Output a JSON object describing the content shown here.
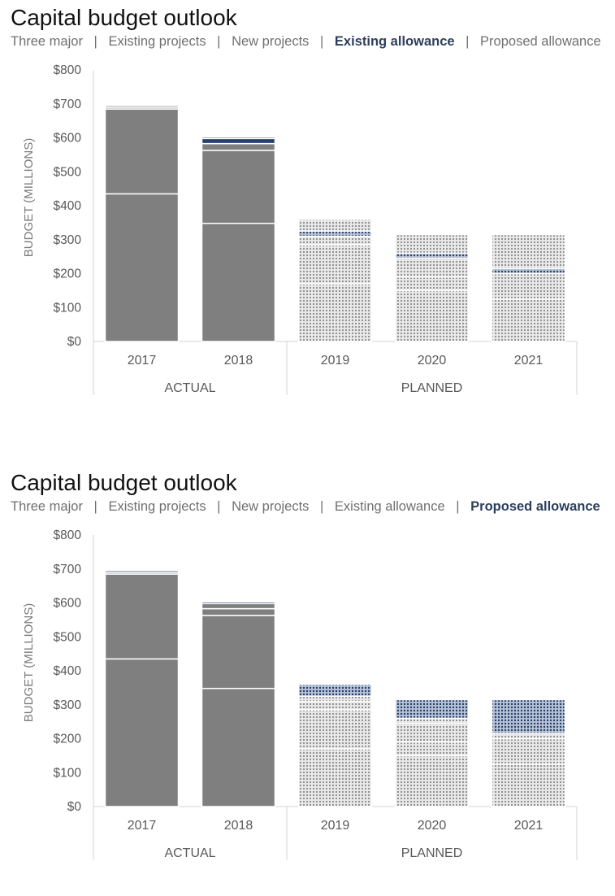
{
  "panels": [
    {
      "title": "Capital budget outlook",
      "legend": [
        {
          "label": "Three major",
          "highlight": false
        },
        {
          "label": "Existing projects",
          "highlight": false
        },
        {
          "label": "New projects",
          "highlight": false
        },
        {
          "label": "Existing allowance",
          "highlight": true
        },
        {
          "label": "Proposed allowance",
          "highlight": false
        }
      ],
      "separator": "|",
      "chart_data": {
        "type": "bar",
        "stacked": true,
        "title": "Capital budget outlook",
        "ylabel": "BUDGET (MILLIONS)",
        "xlabel": "",
        "ylim": [
          0,
          800
        ],
        "yticks": [
          0,
          100,
          200,
          300,
          400,
          500,
          600,
          700,
          800
        ],
        "ytick_labels": [
          "$0",
          "$100",
          "$200",
          "$300",
          "$400",
          "$500",
          "$600",
          "$700",
          "$800"
        ],
        "categories": [
          "2017",
          "2018",
          "2019",
          "2020",
          "2021"
        ],
        "groups": [
          {
            "label": "ACTUAL",
            "categories": [
              "2017",
              "2018"
            ]
          },
          {
            "label": "PLANNED",
            "categories": [
              "2019",
              "2020",
              "2021"
            ]
          }
        ],
        "highlight_series": "Existing allowance",
        "series": [
          {
            "name": "Three major",
            "values": [
              435,
              348,
              170,
              150,
              125
            ]
          },
          {
            "name": "Existing projects",
            "values": [
              250,
              215,
              115,
              40,
              75
            ]
          },
          {
            "name": "New projects",
            "values": [
              5,
              20,
              25,
              55,
              0
            ]
          },
          {
            "name": "Existing allowance",
            "values": [
              0,
              15,
              15,
              15,
              15
            ]
          },
          {
            "name": "Proposed allowance",
            "values": [
              5,
              5,
              35,
              55,
              100
            ]
          }
        ]
      }
    },
    {
      "title": "Capital budget outlook",
      "legend": [
        {
          "label": "Three major",
          "highlight": false
        },
        {
          "label": "Existing projects",
          "highlight": false
        },
        {
          "label": "New projects",
          "highlight": false
        },
        {
          "label": "Existing allowance",
          "highlight": false
        },
        {
          "label": "Proposed allowance",
          "highlight": true
        }
      ],
      "separator": "|",
      "chart_data": {
        "type": "bar",
        "stacked": true,
        "title": "Capital budget outlook",
        "ylabel": "BUDGET (MILLIONS)",
        "xlabel": "",
        "ylim": [
          0,
          800
        ],
        "yticks": [
          0,
          100,
          200,
          300,
          400,
          500,
          600,
          700,
          800
        ],
        "ytick_labels": [
          "$0",
          "$100",
          "$200",
          "$300",
          "$400",
          "$500",
          "$600",
          "$700",
          "$800"
        ],
        "categories": [
          "2017",
          "2018",
          "2019",
          "2020",
          "2021"
        ],
        "groups": [
          {
            "label": "ACTUAL",
            "categories": [
              "2017",
              "2018"
            ]
          },
          {
            "label": "PLANNED",
            "categories": [
              "2019",
              "2020",
              "2021"
            ]
          }
        ],
        "highlight_series": "Proposed allowance",
        "series": [
          {
            "name": "Three major",
            "values": [
              435,
              348,
              170,
              150,
              125
            ]
          },
          {
            "name": "Existing projects",
            "values": [
              250,
              215,
              115,
              40,
              75
            ]
          },
          {
            "name": "New projects",
            "values": [
              5,
              20,
              25,
              55,
              0
            ]
          },
          {
            "name": "Existing allowance",
            "values": [
              0,
              15,
              15,
              15,
              15
            ]
          },
          {
            "name": "Proposed allowance",
            "values": [
              5,
              5,
              35,
              55,
              100
            ]
          }
        ]
      }
    }
  ],
  "colors": {
    "actual_bar": "#7f7f7f",
    "planned_bg": "#e9e9e9",
    "planned_dot": "#8a8a8a",
    "highlight": "#263f6b",
    "highlight_planned_bg": "#b9c3d6",
    "segment_line": "#ffffff",
    "axis_line": "#d4d4d4",
    "tick_text": "#595959",
    "legend_highlight": "#2c3e5c"
  }
}
